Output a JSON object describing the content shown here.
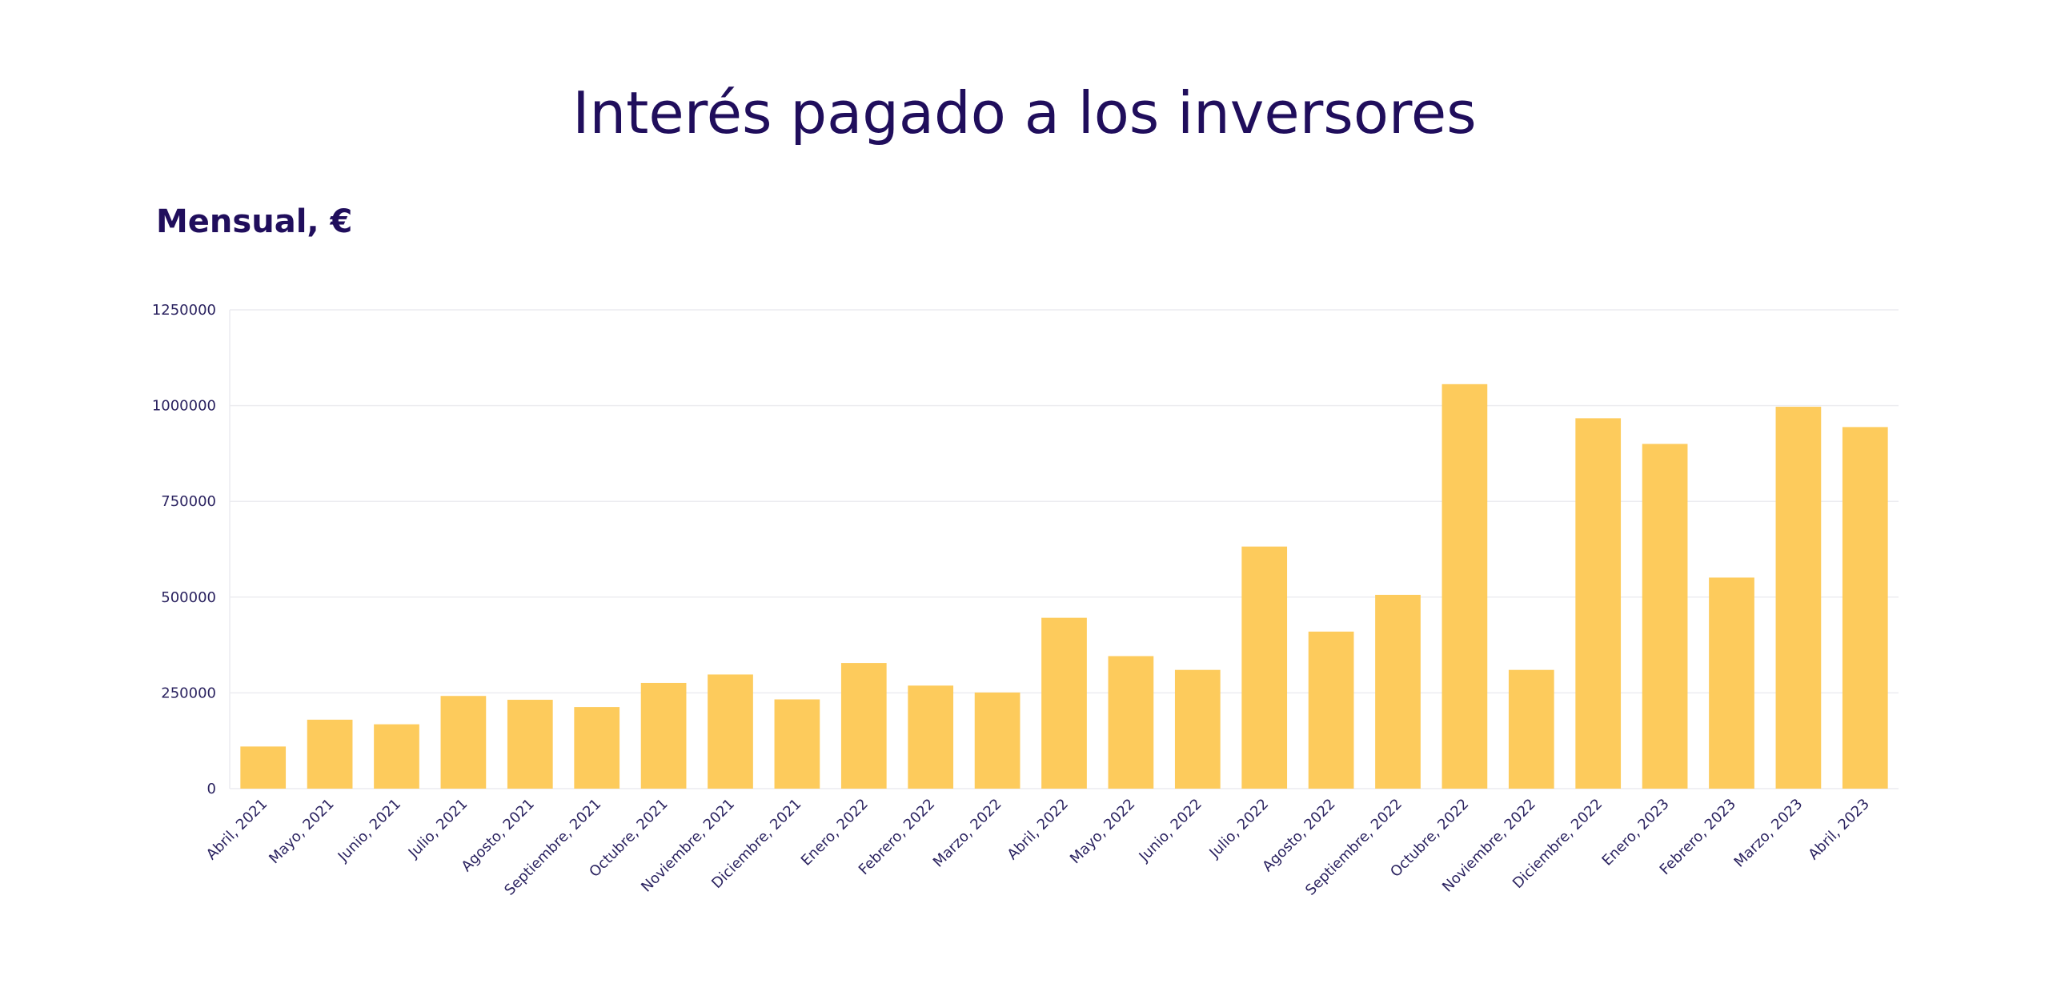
{
  "page": {
    "title": "Interés pagado a los inversores",
    "subtitle": "Mensual, €"
  },
  "colors": {
    "bar": "#fdcb5c",
    "text": "#200e5c",
    "grid": "#ececf0"
  },
  "chart_data": {
    "type": "bar",
    "title": "Interés pagado a los inversores",
    "subtitle": "Mensual, €",
    "xlabel": "",
    "ylabel": "",
    "ylim": [
      0,
      1250000
    ],
    "yticks": [
      0,
      250000,
      500000,
      750000,
      1000000,
      1250000
    ],
    "grid": true,
    "legend": "none",
    "categories": [
      "Abril, 2021",
      "Mayo, 2021",
      "Junio, 2021",
      "Julio, 2021",
      "Agosto, 2021",
      "Septiembre, 2021",
      "Octubre, 2021",
      "Noviembre, 2021",
      "Diciembre, 2021",
      "Enero, 2022",
      "Febrero, 2022",
      "Marzo, 2022",
      "Abril, 2022",
      "Mayo, 2022",
      "Junio, 2022",
      "Julio, 2022",
      "Agosto, 2022",
      "Septiembre, 2022",
      "Octubre, 2022",
      "Noviembre, 2022",
      "Diciembre, 2022",
      "Enero, 2023",
      "Febrero, 2023",
      "Marzo, 2023",
      "Abril, 2023"
    ],
    "values": [
      110000,
      180000,
      168000,
      242000,
      232000,
      213000,
      276000,
      298000,
      233000,
      328000,
      269000,
      251000,
      446000,
      346000,
      310000,
      632000,
      410000,
      506000,
      1056000,
      310000,
      967000,
      900000,
      551000,
      997000,
      944000
    ]
  }
}
